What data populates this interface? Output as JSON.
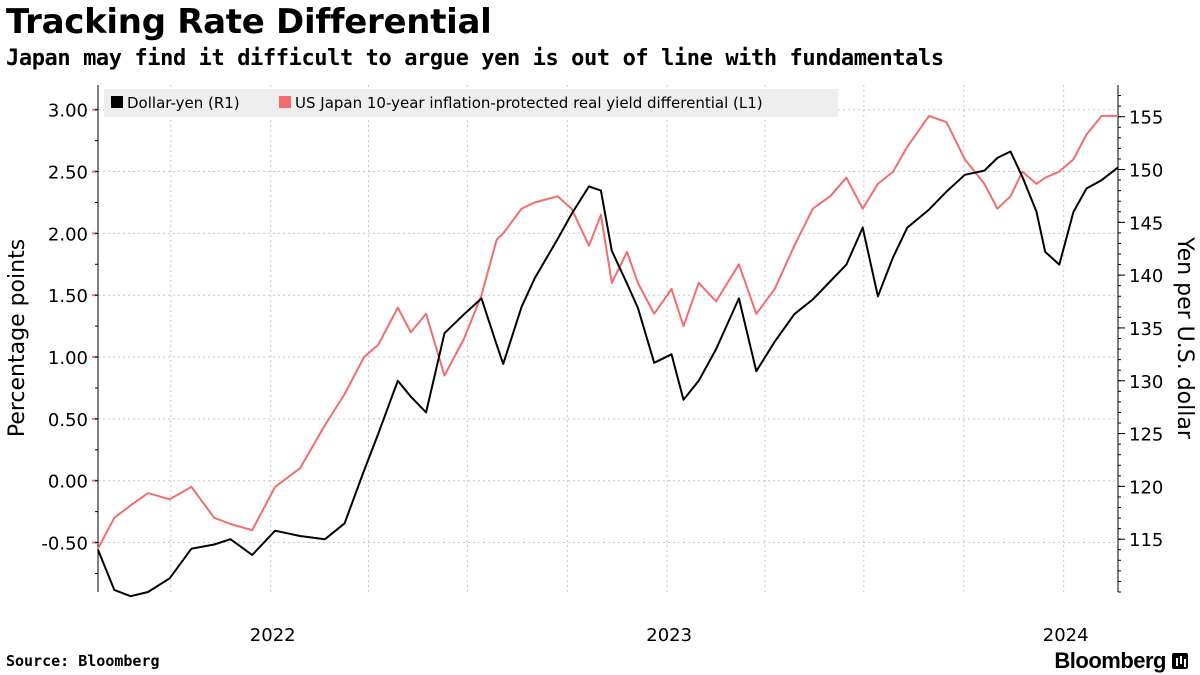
{
  "title": "Tracking Rate Differential",
  "subtitle": "Japan may find it difficult to argue yen is out of line with fundamentals",
  "footer": {
    "source": "Source: Bloomberg",
    "brand": "Bloomberg"
  },
  "colors": {
    "dollar_yen": "#000000",
    "real_yield_diff": "#f26d6d",
    "grid": "#c8c8c8",
    "legend_bg": "#eeeeee"
  },
  "chart_data": {
    "type": "line",
    "legend": [
      "Dollar-yen (R1)",
      "US Japan 10-year inflation-protected real yield differential (L1)"
    ],
    "legend_position": "top-left",
    "grid": true,
    "y_left": {
      "label": "Percentage points",
      "range": [
        -0.9,
        3.2
      ],
      "ticks": [
        -0.5,
        0.0,
        0.5,
        1.0,
        1.5,
        2.0,
        2.5,
        3.0
      ],
      "tick_labels": [
        "-0.50",
        "0.00",
        "0.50",
        "1.00",
        "1.50",
        "2.00",
        "2.50",
        "3.00"
      ]
    },
    "y_right": {
      "label": "Yen per U.S. dollar",
      "range": [
        110,
        158
      ],
      "ticks": [
        115,
        120,
        125,
        130,
        135,
        140,
        145,
        150,
        155
      ],
      "tick_labels": [
        "115",
        "120",
        "125",
        "130",
        "135",
        "140",
        "145",
        "150",
        "155"
      ]
    },
    "x": {
      "range": [
        "2021-07-26",
        "2024-02-20"
      ],
      "ticks": [
        "2022-01-01",
        "2023-01-01",
        "2024-01-01"
      ],
      "tick_labels": [
        "2022",
        "2023",
        "2024"
      ],
      "gridlines": [
        "2021-10-01",
        "2022-01-01",
        "2022-04-01",
        "2022-07-01",
        "2022-10-01",
        "2023-01-01",
        "2023-04-01",
        "2023-07-01",
        "2023-10-01",
        "2024-01-01"
      ]
    },
    "series": [
      {
        "name": "Dollar-yen (R1)",
        "axis": "right",
        "x": [
          "2021-07-26",
          "2021-08-10",
          "2021-08-25",
          "2021-09-10",
          "2021-09-30",
          "2021-10-20",
          "2021-11-10",
          "2021-11-25",
          "2021-12-15",
          "2022-01-05",
          "2022-01-28",
          "2022-02-20",
          "2022-03-10",
          "2022-03-28",
          "2022-04-10",
          "2022-04-28",
          "2022-05-10",
          "2022-05-24",
          "2022-06-10",
          "2022-06-28",
          "2022-07-14",
          "2022-07-28",
          "2022-08-03",
          "2022-08-20",
          "2022-09-01",
          "2022-09-22",
          "2022-10-05",
          "2022-10-21",
          "2022-11-01",
          "2022-11-11",
          "2022-11-25",
          "2022-12-05",
          "2022-12-20",
          "2023-01-05",
          "2023-01-16",
          "2023-01-30",
          "2023-02-15",
          "2023-03-08",
          "2023-03-24",
          "2023-04-10",
          "2023-04-28",
          "2023-05-15",
          "2023-05-31",
          "2023-06-15",
          "2023-06-30",
          "2023-07-14",
          "2023-07-28",
          "2023-08-10",
          "2023-08-30",
          "2023-09-15",
          "2023-10-02",
          "2023-10-20",
          "2023-11-01",
          "2023-11-13",
          "2023-11-24",
          "2023-12-07",
          "2023-12-15",
          "2023-12-28",
          "2024-01-10",
          "2024-01-22",
          "2024-02-05",
          "2024-02-20"
        ],
        "values": [
          114.0,
          110.2,
          109.6,
          110.0,
          111.3,
          114.1,
          114.5,
          115.0,
          113.5,
          115.8,
          115.3,
          115.0,
          116.5,
          121.5,
          125.0,
          130.0,
          128.5,
          127.0,
          134.5,
          136.3,
          137.8,
          133.4,
          131.6,
          137.0,
          139.7,
          143.4,
          145.8,
          148.4,
          148.0,
          142.3,
          139.2,
          136.9,
          131.7,
          132.5,
          128.2,
          130.0,
          133.0,
          137.8,
          130.9,
          133.7,
          136.3,
          137.7,
          139.4,
          141.0,
          144.5,
          138.0,
          141.7,
          144.5,
          146.2,
          147.9,
          149.5,
          149.9,
          151.1,
          151.7,
          149.3,
          146.0,
          142.2,
          141.0,
          146.0,
          148.2,
          149.0,
          150.2
        ]
      },
      {
        "name": "US Japan 10-year inflation-protected real yield differential (L1)",
        "axis": "left",
        "x": [
          "2021-07-26",
          "2021-08-10",
          "2021-08-25",
          "2021-09-10",
          "2021-09-30",
          "2021-10-20",
          "2021-11-10",
          "2021-11-25",
          "2021-12-15",
          "2022-01-05",
          "2022-01-28",
          "2022-02-20",
          "2022-03-10",
          "2022-03-28",
          "2022-04-10",
          "2022-04-28",
          "2022-05-10",
          "2022-05-24",
          "2022-06-10",
          "2022-06-28",
          "2022-07-14",
          "2022-07-28",
          "2022-08-03",
          "2022-08-20",
          "2022-09-01",
          "2022-09-22",
          "2022-10-05",
          "2022-10-21",
          "2022-11-01",
          "2022-11-11",
          "2022-11-25",
          "2022-12-05",
          "2022-12-20",
          "2023-01-05",
          "2023-01-16",
          "2023-01-30",
          "2023-02-15",
          "2023-03-08",
          "2023-03-24",
          "2023-04-10",
          "2023-04-28",
          "2023-05-15",
          "2023-05-31",
          "2023-06-15",
          "2023-06-30",
          "2023-07-14",
          "2023-07-28",
          "2023-08-10",
          "2023-08-30",
          "2023-09-15",
          "2023-10-02",
          "2023-10-20",
          "2023-11-01",
          "2023-11-13",
          "2023-11-24",
          "2023-12-07",
          "2023-12-15",
          "2023-12-28",
          "2024-01-10",
          "2024-01-22",
          "2024-02-05",
          "2024-02-20"
        ],
        "values": [
          -0.55,
          -0.3,
          -0.2,
          -0.1,
          -0.15,
          -0.05,
          -0.3,
          -0.35,
          -0.4,
          -0.05,
          0.1,
          0.45,
          0.7,
          1.0,
          1.1,
          1.4,
          1.2,
          1.35,
          0.85,
          1.15,
          1.5,
          1.95,
          2.0,
          2.2,
          2.25,
          2.3,
          2.2,
          1.9,
          2.15,
          1.6,
          1.85,
          1.6,
          1.35,
          1.55,
          1.25,
          1.6,
          1.45,
          1.75,
          1.35,
          1.55,
          1.9,
          2.2,
          2.3,
          2.45,
          2.2,
          2.4,
          2.5,
          2.7,
          2.95,
          2.9,
          2.6,
          2.4,
          2.2,
          2.3,
          2.5,
          2.4,
          2.45,
          2.5,
          2.6,
          2.8,
          2.95,
          2.95
        ]
      }
    ]
  }
}
